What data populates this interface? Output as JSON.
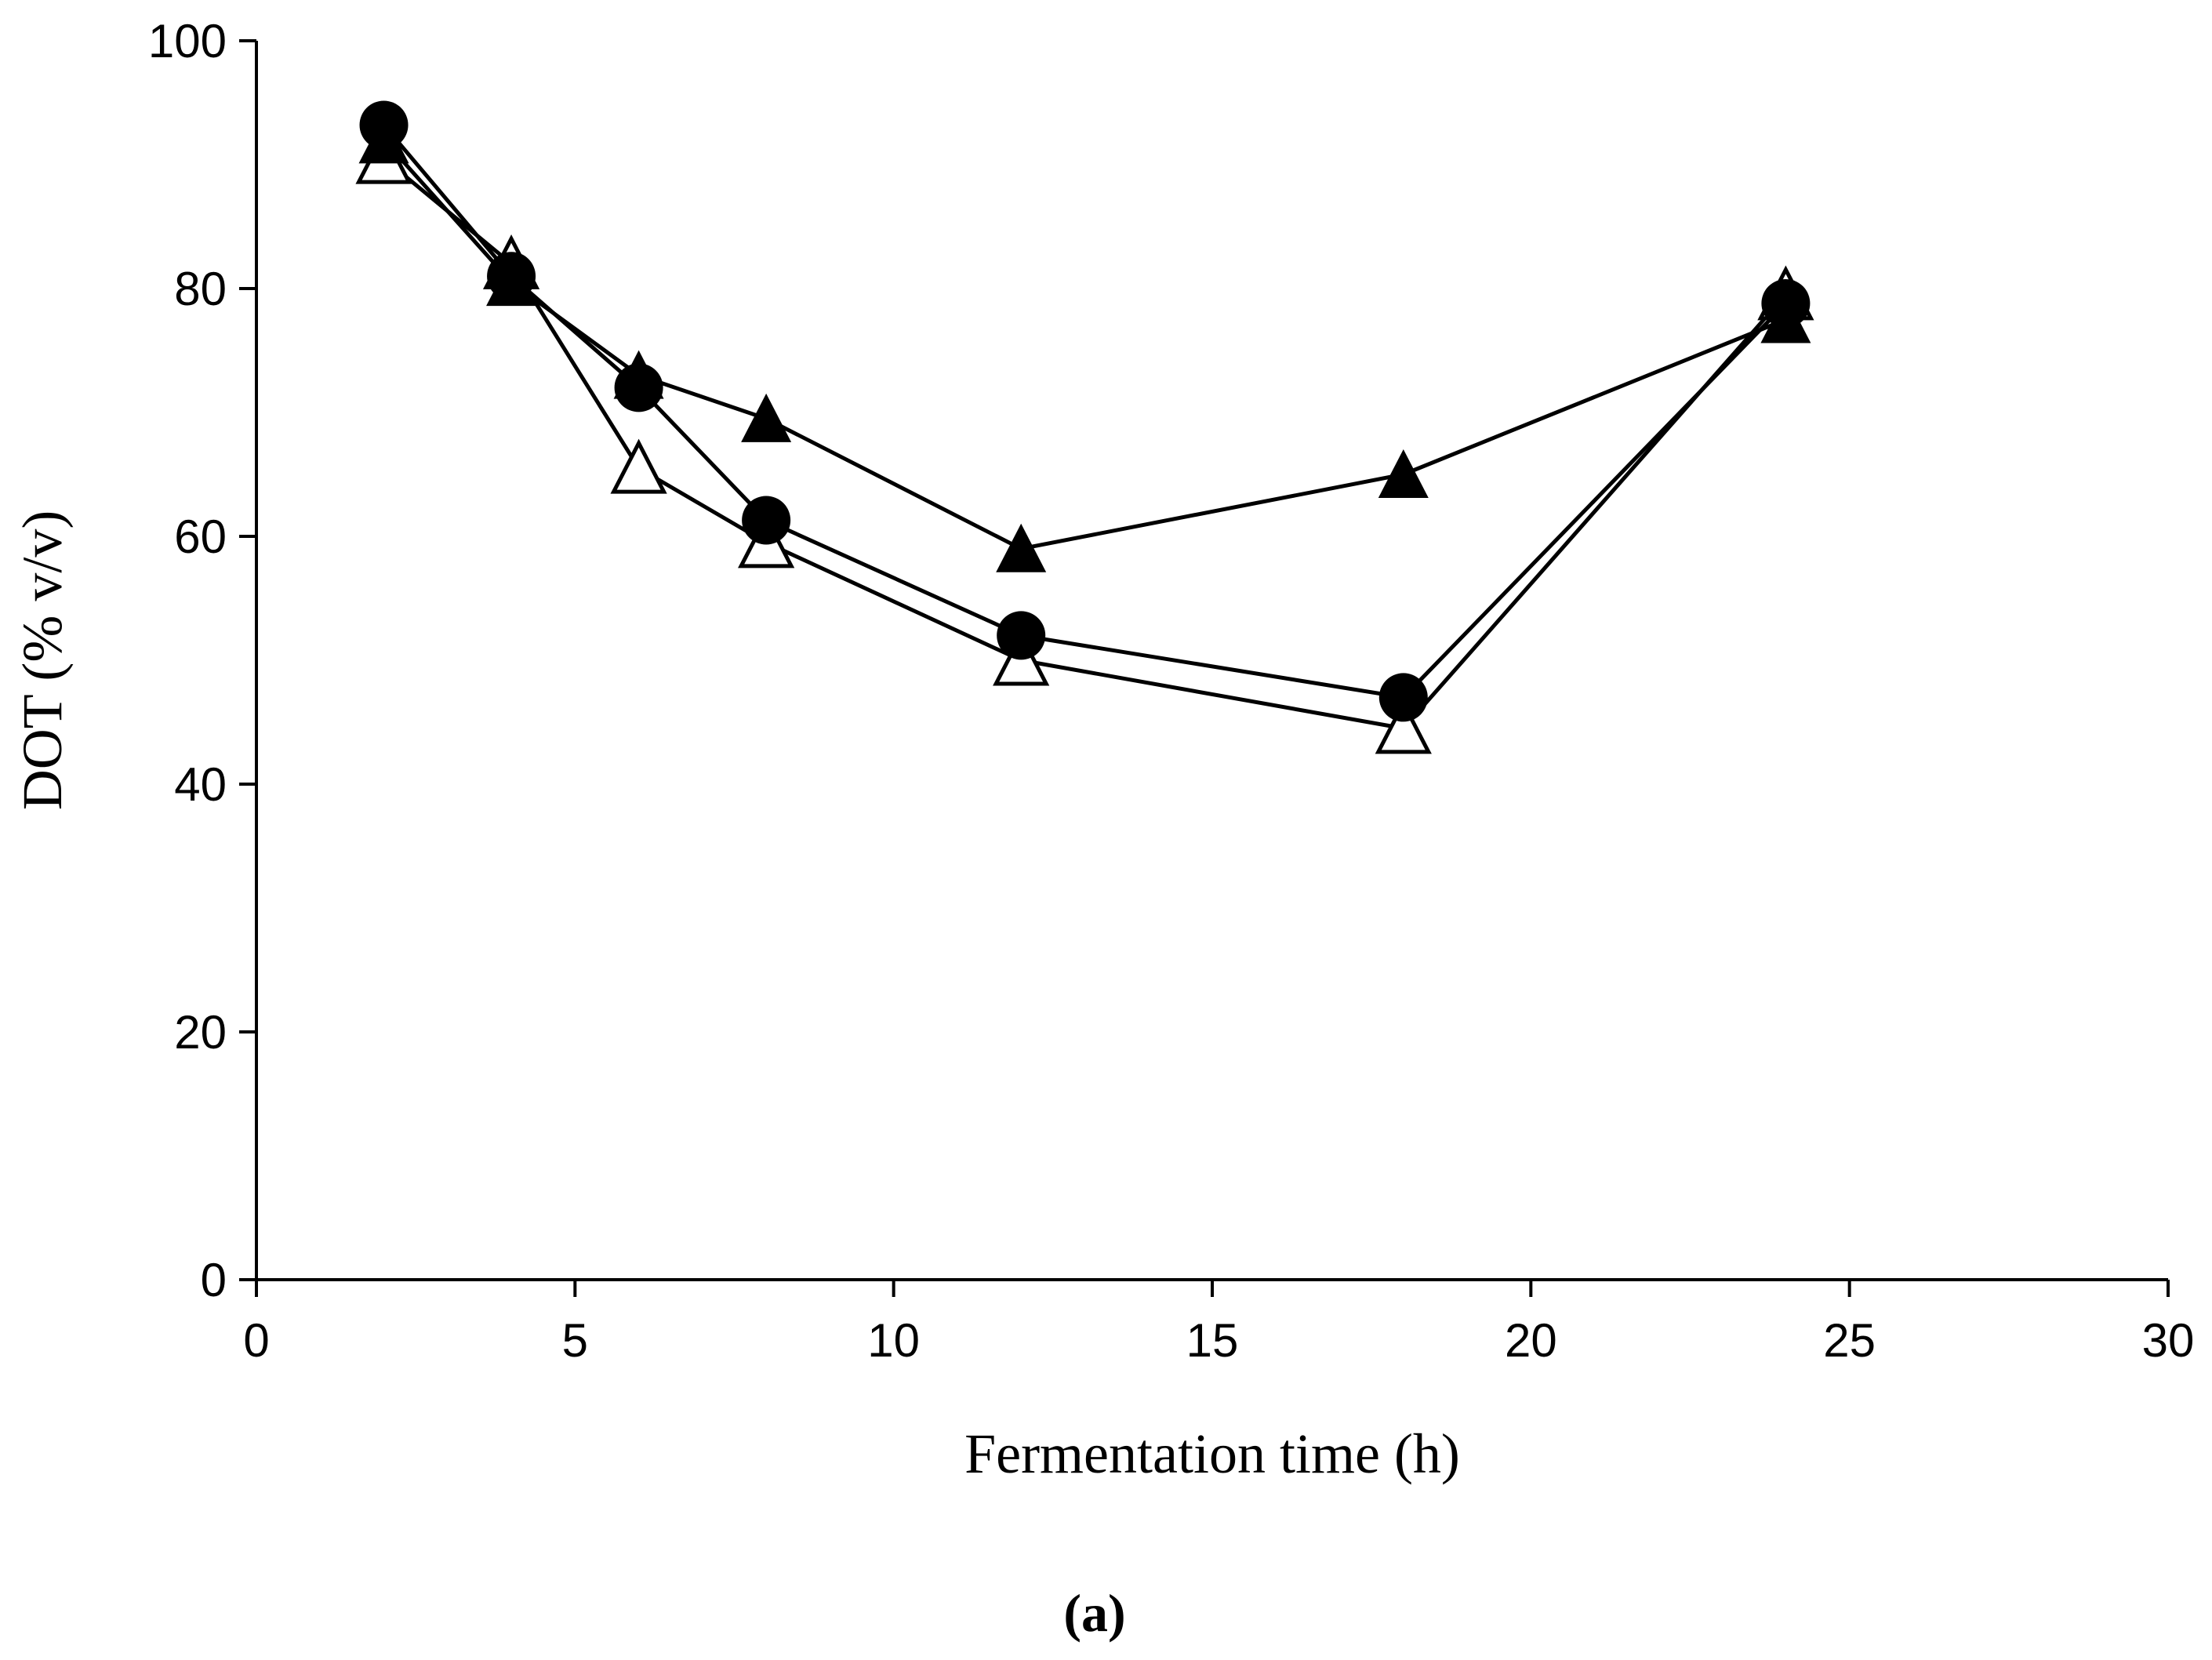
{
  "chart_data": {
    "type": "line",
    "title": "",
    "xlabel": "Fermentation time (h)",
    "ylabel": "DOT (% v/v)",
    "caption": "(a)",
    "xlim": [
      0,
      30
    ],
    "ylim": [
      0,
      100
    ],
    "xticks": [
      0,
      5,
      10,
      15,
      20,
      25,
      30
    ],
    "yticks": [
      0,
      20,
      40,
      60,
      80,
      100
    ],
    "grid": false,
    "legend": "none",
    "x": [
      2,
      4,
      6,
      8,
      12,
      18,
      24
    ],
    "series": [
      {
        "name": "open-triangle",
        "marker": "triangle-open",
        "values": [
          90.5,
          82,
          65.5,
          59.5,
          50,
          44.5,
          79.5
        ]
      },
      {
        "name": "filled-triangle",
        "marker": "triangle-filled",
        "values": [
          92,
          80.5,
          73,
          69.5,
          59,
          65,
          77.5
        ]
      },
      {
        "name": "filled-circle",
        "marker": "circle-filled",
        "values": [
          93.2,
          81,
          72,
          61.3,
          52,
          47,
          78.8
        ]
      }
    ]
  }
}
